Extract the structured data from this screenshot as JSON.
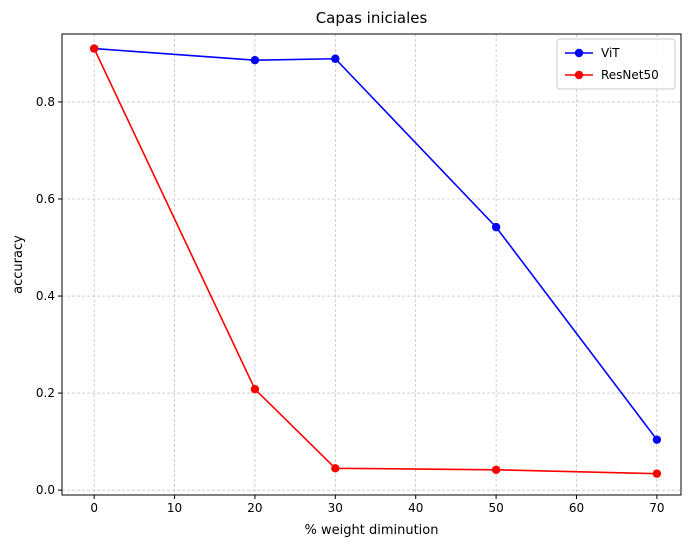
{
  "chart_data": {
    "type": "line",
    "title": "Capas iniciales",
    "xlabel": "% weight diminution",
    "ylabel": "accuracy",
    "x": [
      0,
      20,
      30,
      50,
      70
    ],
    "xlim": [
      -4,
      73
    ],
    "ylim": [
      -0.01,
      0.94
    ],
    "xticks": [
      0,
      10,
      20,
      30,
      40,
      50,
      60,
      70
    ],
    "yticks": [
      0.0,
      0.2,
      0.4,
      0.6,
      0.8
    ],
    "xtick_labels": [
      "0",
      "10",
      "20",
      "30",
      "40",
      "50",
      "60",
      "70"
    ],
    "ytick_labels": [
      "0.0",
      "0.2",
      "0.4",
      "0.6",
      "0.8"
    ],
    "grid": true,
    "legend_position": "top-right",
    "series": [
      {
        "name": "ViT",
        "color": "#0000ff",
        "marker": "circle",
        "values": [
          0.91,
          0.886,
          0.889,
          0.542,
          0.104
        ]
      },
      {
        "name": "ResNet50",
        "color": "#ff0000",
        "marker": "circle",
        "values": [
          0.91,
          0.208,
          0.045,
          0.042,
          0.034
        ]
      }
    ]
  }
}
